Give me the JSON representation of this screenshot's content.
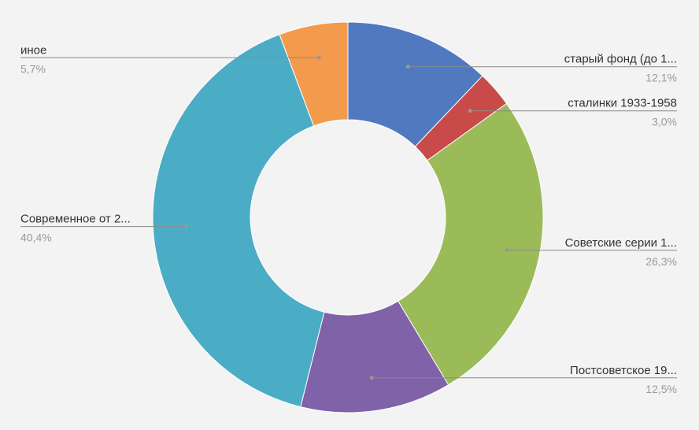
{
  "chart_data": {
    "type": "pie",
    "variant": "donut",
    "title": "",
    "slices": [
      {
        "label": "старый фонд (до 1...",
        "value": 12.1,
        "value_label": "12,1%",
        "color": "#5079bf",
        "side": "right"
      },
      {
        "label": "сталинки 1933-1958",
        "value": 3.0,
        "value_label": "3,0%",
        "color": "#c84a49",
        "side": "right"
      },
      {
        "label": "Советские серии 1...",
        "value": 26.3,
        "value_label": "26,3%",
        "color": "#9bbb59",
        "side": "right"
      },
      {
        "label": "Постсоветское 19...",
        "value": 12.5,
        "value_label": "12,5%",
        "color": "#7f62a8",
        "side": "right"
      },
      {
        "label": "Современное от 2...",
        "value": 40.4,
        "value_label": "40,4%",
        "color": "#4bacc6",
        "side": "left"
      },
      {
        "label": "иное",
        "value": 5.7,
        "value_label": "5,7%",
        "color": "#f49a4c",
        "side": "left"
      }
    ],
    "start_angle_deg": 0,
    "direction": "clockwise",
    "legend": "none",
    "data_labels": "outside with leader lines"
  }
}
